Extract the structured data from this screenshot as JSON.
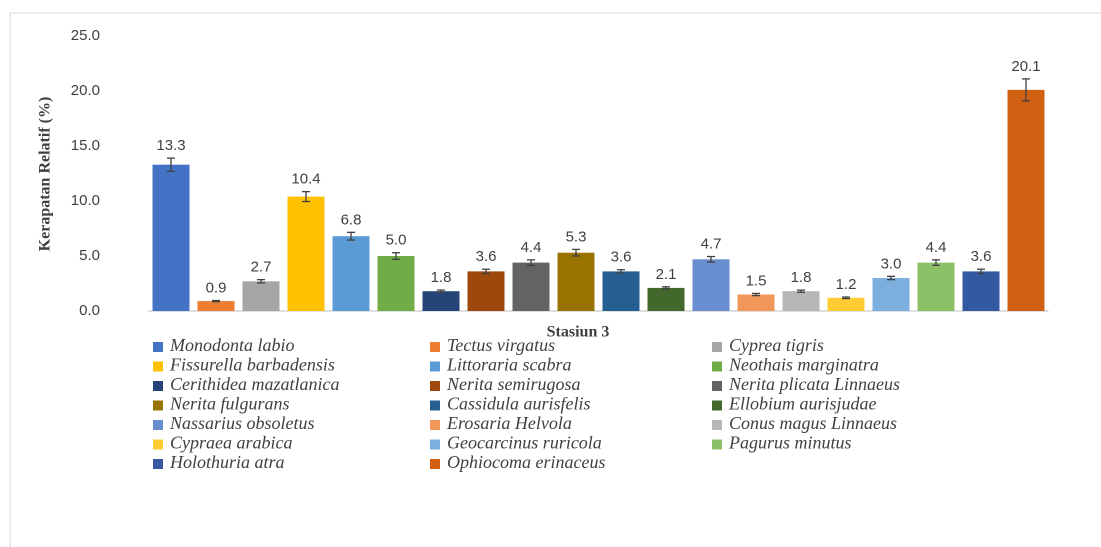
{
  "chart_data": {
    "type": "bar",
    "y_label": "Kerapatan Relatif (%)",
    "categories": [
      "Stasiun 3"
    ],
    "ylim": [
      0,
      25
    ],
    "yticks": [
      {
        "value": 0,
        "label": "0.0"
      },
      {
        "value": 5,
        "label": "5.0"
      },
      {
        "value": 10,
        "label": "10.0"
      },
      {
        "value": 15,
        "label": "15.0"
      },
      {
        "value": 20,
        "label": "20.0"
      },
      {
        "value": 25,
        "label": "25.0"
      }
    ],
    "grid": false,
    "legend": "bottom",
    "series": [
      {
        "name": "Monodonta labio",
        "color": "#4472c4",
        "values": [
          13.3
        ],
        "value_labels": [
          "13.3"
        ],
        "errors": [
          0.6
        ]
      },
      {
        "name": "Tectus virgatus",
        "color": "#ed7d31",
        "values": [
          0.9
        ],
        "value_labels": [
          "0.9"
        ],
        "errors": [
          0.05
        ]
      },
      {
        "name": "Cyprea tigris",
        "color": "#a5a5a5",
        "values": [
          2.7
        ],
        "value_labels": [
          "2.7"
        ],
        "errors": [
          0.15
        ]
      },
      {
        "name": "Fissurella barbadensis",
        "color": "#ffc000",
        "values": [
          10.4
        ],
        "value_labels": [
          "10.4"
        ],
        "errors": [
          0.45
        ]
      },
      {
        "name": "Littoraria scabra",
        "color": "#5b9bd5",
        "values": [
          6.8
        ],
        "value_labels": [
          "6.8"
        ],
        "errors": [
          0.35
        ]
      },
      {
        "name": "Neothais marginatra",
        "color": "#70ad47",
        "values": [
          5.0
        ],
        "value_labels": [
          "5.0"
        ],
        "errors": [
          0.3
        ]
      },
      {
        "name": "Cerithidea mazatlanica",
        "color": "#264478",
        "values": [
          1.8
        ],
        "value_labels": [
          "1.8"
        ],
        "errors": [
          0.1
        ]
      },
      {
        "name": "Nerita semirugosa",
        "color": "#9e480e",
        "values": [
          3.6
        ],
        "value_labels": [
          "3.6"
        ],
        "errors": [
          0.2
        ]
      },
      {
        "name": "Nerita plicata Linnaeus",
        "color": "#636363",
        "values": [
          4.4
        ],
        "value_labels": [
          "4.4"
        ],
        "errors": [
          0.25
        ]
      },
      {
        "name": "Nerita fulgurans",
        "color": "#997300",
        "values": [
          5.3
        ],
        "value_labels": [
          "5.3"
        ],
        "errors": [
          0.3
        ]
      },
      {
        "name": "Cassidula aurisfelis",
        "color": "#255e91",
        "values": [
          3.6
        ],
        "value_labels": [
          "3.6"
        ],
        "errors": [
          0.15
        ]
      },
      {
        "name": "Ellobium aurisjudae",
        "color": "#43682b",
        "values": [
          2.1
        ],
        "value_labels": [
          "2.1"
        ],
        "errors": [
          0.1
        ]
      },
      {
        "name": "Nassarius obsoletus",
        "color": "#698ed0",
        "values": [
          4.7
        ],
        "value_labels": [
          "4.7"
        ],
        "errors": [
          0.25
        ]
      },
      {
        "name": "Erosaria Helvola",
        "color": "#f1975a",
        "values": [
          1.5
        ],
        "value_labels": [
          "1.5"
        ],
        "errors": [
          0.1
        ]
      },
      {
        "name": "Conus magus Linnaeus",
        "color": "#b7b7b7",
        "values": [
          1.8
        ],
        "value_labels": [
          "1.8"
        ],
        "errors": [
          0.1
        ]
      },
      {
        "name": "Cypraea arabica",
        "color": "#ffcd33",
        "values": [
          1.2
        ],
        "value_labels": [
          "1.2"
        ],
        "errors": [
          0.07
        ]
      },
      {
        "name": "Geocarcinus ruricola",
        "color": "#7cafdd",
        "values": [
          3.0
        ],
        "value_labels": [
          "3.0"
        ],
        "errors": [
          0.15
        ]
      },
      {
        "name": "Pagurus minutus",
        "color": "#8cc168",
        "values": [
          4.4
        ],
        "value_labels": [
          "4.4"
        ],
        "errors": [
          0.25
        ]
      },
      {
        "name": "Holothuria atra",
        "color": "#335aa1",
        "values": [
          3.6
        ],
        "value_labels": [
          "3.6"
        ],
        "errors": [
          0.2
        ]
      },
      {
        "name": "Ophiocoma erinaceus",
        "color": "#d26012",
        "values": [
          20.1
        ],
        "value_labels": [
          "20.1"
        ],
        "errors": [
          1.0
        ]
      }
    ]
  }
}
